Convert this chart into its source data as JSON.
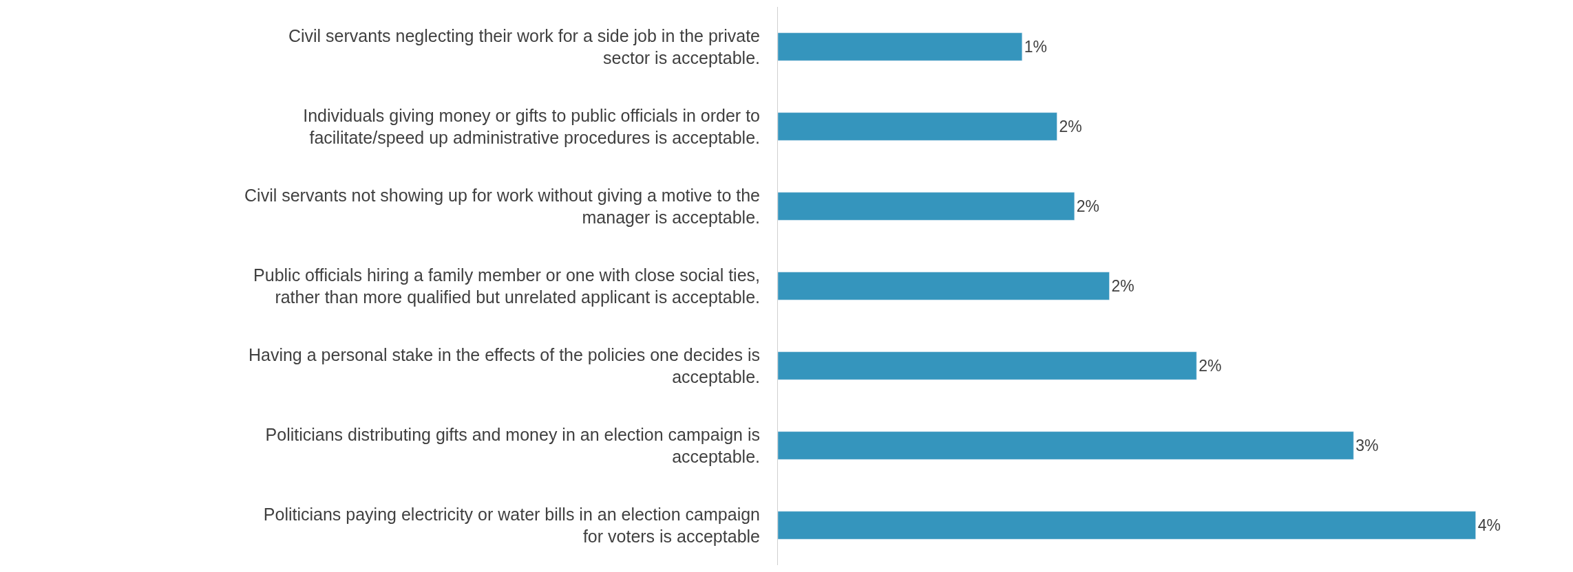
{
  "chart_data": {
    "type": "bar",
    "orientation": "horizontal",
    "categories": [
      "Civil servants neglecting their work for a side job in the private sector is acceptable.",
      "Individuals giving money or gifts to public officials in order to facilitate/speed up administrative procedures is acceptable.",
      "Civil servants not showing up for work without giving a motive to the manager is acceptable.",
      "Public officials hiring a family member or one with close social ties, rather than more qualified but unrelated applicant is acceptable.",
      "Having a personal stake in the effects of the policies one decides is acceptable.",
      "Politicians distributing gifts and money in an election campaign is acceptable.",
      "Politicians paying electricity or water bills in an election campaign for voters is acceptable"
    ],
    "values": [
      1.4,
      1.6,
      1.7,
      1.9,
      2.4,
      3.3,
      4.0
    ],
    "value_labels": [
      "1%",
      "2%",
      "2%",
      "2%",
      "2%",
      "3%",
      "4%"
    ],
    "color": "#3595bd",
    "tick_labels": "y"
  }
}
